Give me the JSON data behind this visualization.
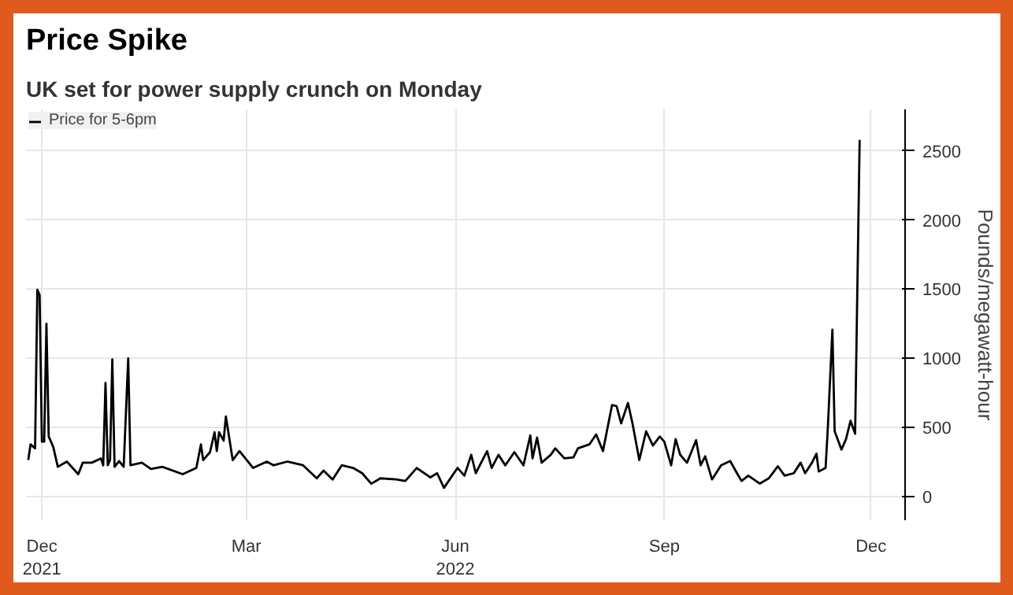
{
  "chart_data": {
    "type": "line",
    "title": "Price Spike",
    "subtitle": "UK set for power supply crunch on  Monday",
    "ylabel": "Pounds/megawatt-hour",
    "x": [
      "2021-11-25",
      "2021-11-26",
      "2021-11-28",
      "2021-11-29",
      "2021-11-30",
      "2021-12-01",
      "2021-12-02",
      "2021-12-03",
      "2021-12-04",
      "2021-12-06",
      "2021-12-08",
      "2021-12-12",
      "2021-12-17",
      "2021-12-19",
      "2021-12-23",
      "2021-12-27",
      "2021-12-28",
      "2021-12-29",
      "2021-12-30",
      "2021-12-31",
      "2022-01-01",
      "2022-01-02",
      "2022-01-04",
      "2022-01-06",
      "2022-01-08",
      "2022-01-09",
      "2022-01-14",
      "2022-01-18",
      "2022-01-23",
      "2022-02-01",
      "2022-02-07",
      "2022-02-09",
      "2022-02-10",
      "2022-02-13",
      "2022-02-15",
      "2022-02-16",
      "2022-02-17",
      "2022-02-19",
      "2022-02-20",
      "2022-02-23",
      "2022-02-26",
      "2022-03-04",
      "2022-03-10",
      "2022-03-13",
      "2022-03-19",
      "2022-03-26",
      "2022-04-01",
      "2022-04-04",
      "2022-04-08",
      "2022-04-12",
      "2022-04-17",
      "2022-04-21",
      "2022-04-25",
      "2022-04-29",
      "2022-05-06",
      "2022-05-10",
      "2022-05-15",
      "2022-05-21",
      "2022-05-24",
      "2022-05-27",
      "2022-06-02",
      "2022-06-05",
      "2022-06-08",
      "2022-06-10",
      "2022-06-15",
      "2022-06-17",
      "2022-06-20",
      "2022-06-23",
      "2022-06-27",
      "2022-07-01",
      "2022-07-04",
      "2022-07-05",
      "2022-07-07",
      "2022-07-09",
      "2022-07-13",
      "2022-07-15",
      "2022-07-19",
      "2022-07-23",
      "2022-07-25",
      "2022-07-30",
      "2022-08-02",
      "2022-08-05",
      "2022-08-09",
      "2022-08-11",
      "2022-08-13",
      "2022-08-16",
      "2022-08-18",
      "2022-08-21",
      "2022-08-24",
      "2022-08-27",
      "2022-08-30",
      "2022-09-01",
      "2022-09-04",
      "2022-09-06",
      "2022-09-08",
      "2022-09-11",
      "2022-09-15",
      "2022-09-17",
      "2022-09-19",
      "2022-09-22",
      "2022-09-26",
      "2022-09-30",
      "2022-10-03",
      "2022-10-05",
      "2022-10-08",
      "2022-10-13",
      "2022-10-17",
      "2022-10-21",
      "2022-10-24",
      "2022-10-28",
      "2022-10-31",
      "2022-11-02",
      "2022-11-05",
      "2022-11-07",
      "2022-11-08",
      "2022-11-11",
      "2022-11-12",
      "2022-11-14",
      "2022-11-15",
      "2022-11-18",
      "2022-11-20",
      "2022-11-22",
      "2022-11-24",
      "2022-11-26"
    ],
    "series": [
      {
        "name": "Price for 5-6pm",
        "color": "#000000",
        "values": [
          265,
          378,
          350,
          1496,
          1458,
          398,
          398,
          1250,
          435,
          360,
          216,
          254,
          163,
          246,
          246,
          277,
          227,
          822,
          227,
          265,
          992,
          216,
          258,
          216,
          1000,
          227,
          246,
          200,
          216,
          163,
          208,
          378,
          265,
          322,
          466,
          330,
          466,
          405,
          580,
          265,
          330,
          208,
          254,
          227,
          254,
          227,
          133,
          189,
          125,
          227,
          208,
          170,
          94,
          133,
          125,
          114,
          208,
          140,
          170,
          64,
          208,
          152,
          303,
          170,
          330,
          208,
          303,
          227,
          322,
          227,
          443,
          277,
          428,
          246,
          303,
          350,
          277,
          284,
          350,
          378,
          450,
          330,
          663,
          655,
          530,
          678,
          530,
          265,
          473,
          370,
          435,
          398,
          227,
          417,
          303,
          246,
          409,
          227,
          292,
          125,
          227,
          258,
          170,
          114,
          152,
          95,
          133,
          220,
          152,
          170,
          246,
          170,
          246,
          311,
          182,
          208,
          500,
          1208,
          473,
          341,
          417,
          549,
          455,
          2580
        ]
      }
    ],
    "xlim": [
      "2021-11-24",
      "2022-12-16"
    ],
    "xticks": [
      {
        "value": "2021-12-01",
        "label": "Dec\n2021"
      },
      {
        "value": "2022-03-01",
        "label": "Mar"
      },
      {
        "value": "2022-06-01",
        "label": "Jun\n2022"
      },
      {
        "value": "2022-09-01",
        "label": "Sep"
      },
      {
        "value": "2022-12-01",
        "label": "Dec"
      }
    ],
    "ylim": [
      -170,
      2800
    ],
    "yticks": [
      0,
      500,
      1000,
      1500,
      2000,
      2500
    ],
    "grid": true,
    "legend": "top left",
    "line_style": "solid",
    "marker": "none"
  }
}
